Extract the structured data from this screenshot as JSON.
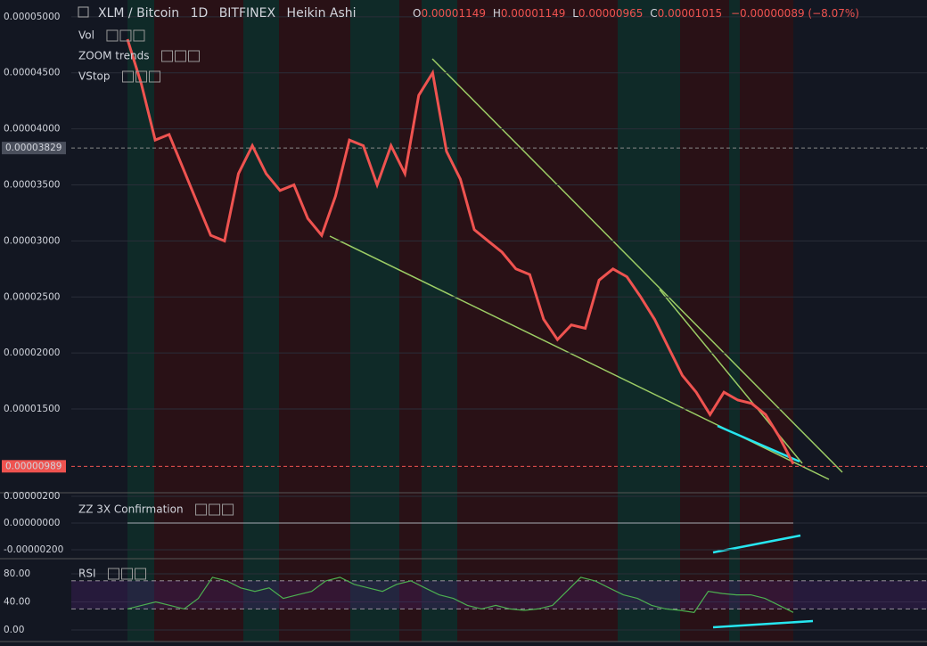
{
  "header": {
    "symbol": "XLM / Bitcoin",
    "interval": "1D",
    "exchange": "BITFINEX",
    "style": "Heikin Ashi",
    "ohlc": [
      "O",
      "0.00001149",
      "H",
      "0.00001149",
      "L",
      "0.00000965",
      "C",
      "0.00001015",
      "−0.00000089 (−8.07%)"
    ]
  },
  "chart_data": [
    {
      "type": "line",
      "legend": [
        "Vol",
        "ZOOM trends",
        "VStop"
      ],
      "color": "#ef5350",
      "values": [
        4.8e-05,
        4.4e-05,
        3.9e-05,
        3.95e-05,
        3.65e-05,
        3.35e-05,
        3.05e-05,
        3e-05,
        3.6e-05,
        3.85e-05,
        3.6e-05,
        3.45e-05,
        3.5e-05,
        3.2e-05,
        3.05e-05,
        3.4e-05,
        3.9e-05,
        3.85e-05,
        3.5e-05,
        3.85e-05,
        3.6e-05,
        4.3e-05,
        4.5e-05,
        3.8e-05,
        3.55e-05,
        3.1e-05,
        3e-05,
        2.9e-05,
        2.75e-05,
        2.7e-05,
        2.3e-05,
        2.12e-05,
        2.25e-05,
        2.22e-05,
        2.65e-05,
        2.75e-05,
        2.68e-05,
        2.5e-05,
        2.3e-05,
        2.05e-05,
        1.8e-05,
        1.65e-05,
        1.45e-05,
        1.65e-05,
        1.58e-05,
        1.55e-05,
        1.45e-05,
        1.25e-05,
        1.01e-05
      ],
      "ylim": [
        7.53e-06,
        5.15e-05
      ],
      "yticks": [
        {
          "value": 5e-05,
          "label": "0.00005000"
        },
        {
          "value": 4.5e-05,
          "label": "0.00004500"
        },
        {
          "value": 4e-05,
          "label": "0.00004000"
        },
        {
          "value": 3.5e-05,
          "label": "0.00003500"
        },
        {
          "value": 3e-05,
          "label": "0.00003000"
        },
        {
          "value": 2.5e-05,
          "label": "0.00002500"
        },
        {
          "value": 2e-05,
          "label": "0.00002000"
        },
        {
          "value": 1.5e-05,
          "label": "0.00001500"
        }
      ],
      "markers": [
        {
          "value": 3.829e-05,
          "label": "0.00003829",
          "color": "#4a4f5c"
        },
        {
          "value": 9.89e-06,
          "label": "0.00000989",
          "color": "#ef5350"
        }
      ]
    },
    {
      "type": "oscillator",
      "legend": [
        "ZZ 3X Confirmation"
      ],
      "ylim": [
        -2.67e-06,
        2.27e-06
      ],
      "yticks": [
        {
          "value": 2e-06,
          "label": "0.00000200"
        },
        {
          "value": 0,
          "label": "0.00000000"
        },
        {
          "value": -2e-06,
          "label": "-0.00000200"
        }
      ]
    },
    {
      "type": "line",
      "legend": [
        "RSI"
      ],
      "color": "#4caf50",
      "values": [
        30,
        35,
        40,
        35,
        30,
        45,
        75,
        70,
        60,
        55,
        60,
        45,
        50,
        55,
        70,
        75,
        65,
        60,
        55,
        65,
        70,
        60,
        50,
        45,
        35,
        30,
        35,
        30,
        28,
        30,
        35,
        55,
        75,
        70,
        60,
        50,
        45,
        35,
        30,
        28,
        25,
        55,
        52,
        50,
        50,
        45,
        35,
        25
      ],
      "ylim": [
        -16.5,
        101.6
      ],
      "yticks": [
        {
          "value": 80,
          "label": "80.00"
        },
        {
          "value": 40,
          "label": "40.00"
        },
        {
          "value": 0,
          "label": "0.00"
        }
      ],
      "bands": [
        70,
        30
      ]
    }
  ]
}
